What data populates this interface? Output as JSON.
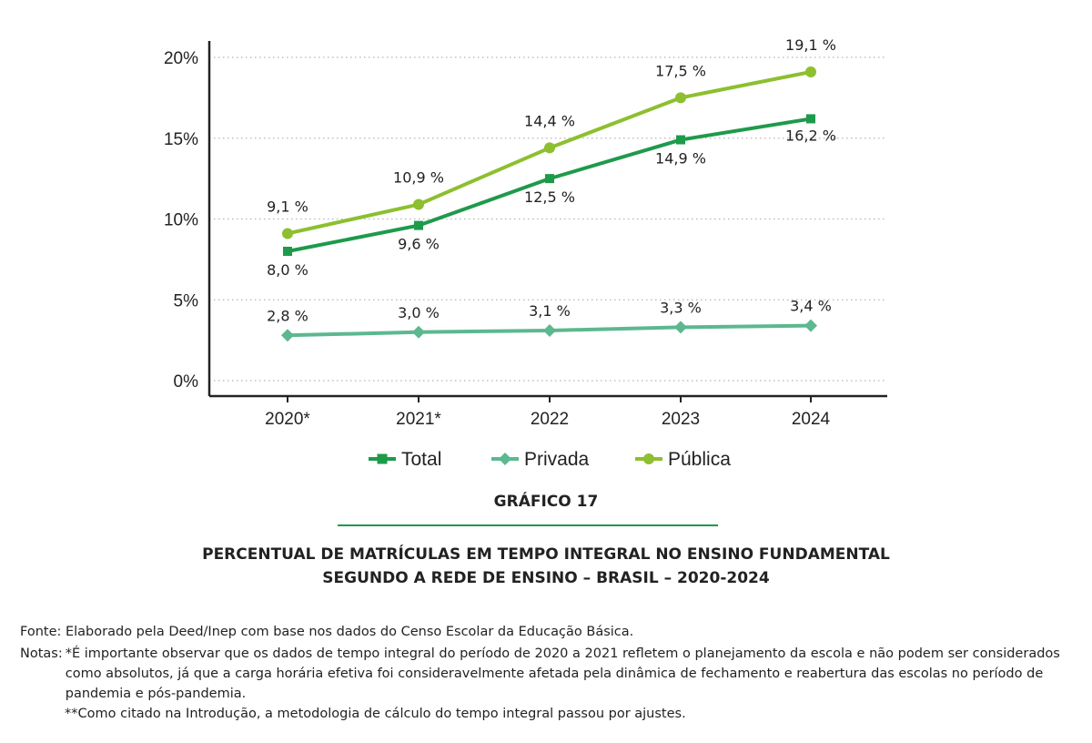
{
  "chart_data": {
    "type": "line",
    "categories": [
      "2020*",
      "2021*",
      "2022",
      "2023",
      "2024"
    ],
    "series": [
      {
        "name": "Total",
        "values": [
          8.0,
          9.6,
          12.5,
          14.9,
          16.2
        ],
        "labels": [
          "8,0 %",
          "9,6 %",
          "12,5 %",
          "14,9 %",
          "16,2 %"
        ],
        "color": "#1e9a4b",
        "marker": "square"
      },
      {
        "name": "Privada",
        "values": [
          2.8,
          3.0,
          3.1,
          3.3,
          3.4
        ],
        "labels": [
          "2,8 %",
          "3,0 %",
          "3,1 %",
          "3,3 %",
          "3,4 %"
        ],
        "color": "#5cb88f",
        "marker": "diamond"
      },
      {
        "name": "Pública",
        "values": [
          9.1,
          10.9,
          14.4,
          17.5,
          19.1
        ],
        "labels": [
          "9,1 %",
          "10,9 %",
          "14,4 %",
          "17,5 %",
          "19,1 %"
        ],
        "color": "#8dbf2f",
        "marker": "circle"
      }
    ],
    "ylim": [
      0,
      20
    ],
    "yticks": [
      0,
      5,
      10,
      15,
      20
    ],
    "ytick_labels": [
      "0%",
      "5%",
      "10%",
      "15%",
      "20%"
    ],
    "grid": "horizontal dotted",
    "legend": "bottom"
  },
  "caption": {
    "label": "GRÁFICO 17",
    "title_line1": "PERCENTUAL DE MATRÍCULAS EM TEMPO INTEGRAL NO ENSINO FUNDAMENTAL",
    "title_line2": "SEGUNDO A REDE DE ENSINO – BRASIL – 2020-2024"
  },
  "source": "Fonte: Elaborado pela Deed/Inep com base nos dados do Censo Escolar da Educação Básica.",
  "notes": {
    "label": "Notas:",
    "note1": "*É importante observar que os dados de tempo integral do período de 2020 a 2021 refletem o planejamento da escola e não podem ser considerados como absolutos, já que a carga horária efetiva foi consideravelmente afetada pela dinâmica de fechamento e reabertura das escolas no período de pandemia e pós-pandemia.",
    "note2": "**Como citado na Introdução, a metodologia de cálculo do tempo integral passou por ajustes."
  }
}
